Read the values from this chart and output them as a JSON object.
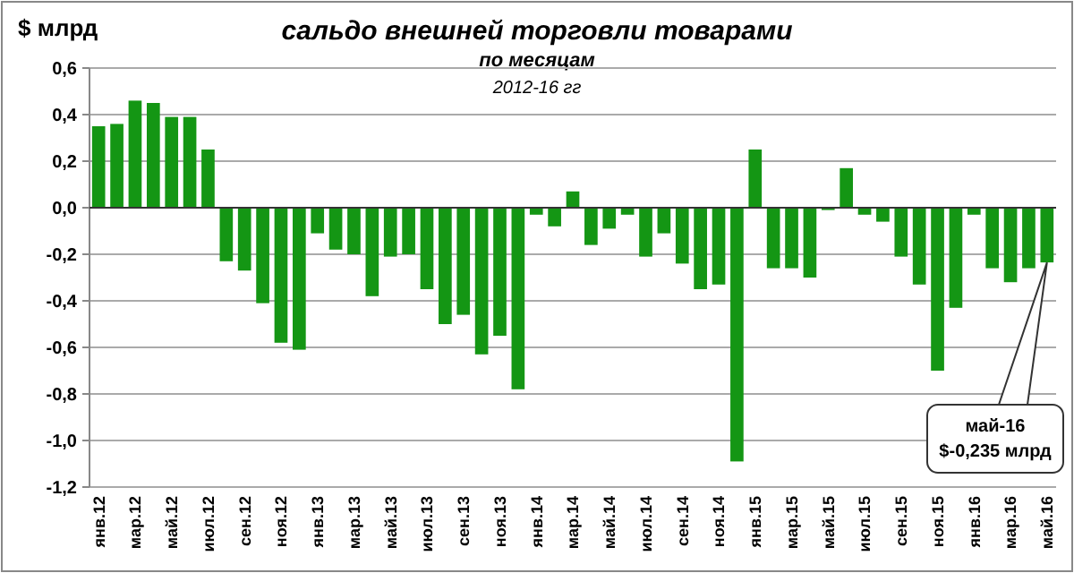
{
  "chart_data": {
    "type": "bar",
    "title": "сальдо внешней торговли товарами",
    "subtitle": "по месяцам",
    "ylabel": "$ млрд",
    "annotations": [
      "2012-16 гг",
      {
        "text": "май-16\n$-0,235 млрд",
        "x": "май.16",
        "y": -0.235
      }
    ],
    "categories": [
      "янв.12",
      null,
      "мар.12",
      null,
      "май.12",
      null,
      "июл.12",
      null,
      "сен.12",
      null,
      "ноя.12",
      null,
      "янв.13",
      null,
      "мар.13",
      null,
      "май.13",
      null,
      "июл.13",
      null,
      "сен.13",
      null,
      "ноя.13",
      null,
      "янв.14",
      null,
      "мар.14",
      null,
      "май.14",
      null,
      "июл.14",
      null,
      "сен.14",
      null,
      "ноя.14",
      null,
      "янв.15",
      null,
      "мар.15",
      null,
      "май.15",
      null,
      "июл.15",
      null,
      "сен.15",
      null,
      "ноя.15",
      null,
      "янв.16",
      null,
      "мар.16",
      null,
      "май.16"
    ],
    "values": [
      0.35,
      0.36,
      0.46,
      0.45,
      0.39,
      0.39,
      0.25,
      -0.23,
      -0.27,
      -0.41,
      -0.58,
      -0.61,
      -0.11,
      -0.18,
      -0.2,
      -0.38,
      -0.21,
      -0.2,
      -0.35,
      -0.5,
      -0.46,
      -0.63,
      -0.55,
      -0.78,
      -0.03,
      -0.08,
      0.07,
      -0.16,
      -0.09,
      -0.03,
      -0.21,
      -0.11,
      -0.24,
      -0.35,
      -0.33,
      -1.09,
      0.25,
      -0.26,
      -0.26,
      -0.3,
      -0.01,
      0.17,
      -0.03,
      -0.06,
      -0.21,
      -0.33,
      -0.7,
      -0.43,
      -0.03,
      -0.26,
      -0.32,
      -0.26,
      -0.235
    ],
    "color": "#149614",
    "ylim": [
      -1.2,
      0.6
    ],
    "yticks": [
      {
        "value": -1.2,
        "label": "-1,2"
      },
      {
        "value": -1,
        "label": "-1,0"
      },
      {
        "value": -0.8,
        "label": "-0,8"
      },
      {
        "value": -0.6,
        "label": "-0,6"
      },
      {
        "value": -0.4,
        "label": "-0,4"
      },
      {
        "value": -0.2,
        "label": "-0,2"
      },
      {
        "value": 0,
        "label": "0,0"
      },
      {
        "value": 0.2,
        "label": "0,2"
      },
      {
        "value": 0.4,
        "label": "0,4"
      },
      {
        "value": 0.6,
        "label": "0,6"
      }
    ],
    "grid": "y"
  }
}
